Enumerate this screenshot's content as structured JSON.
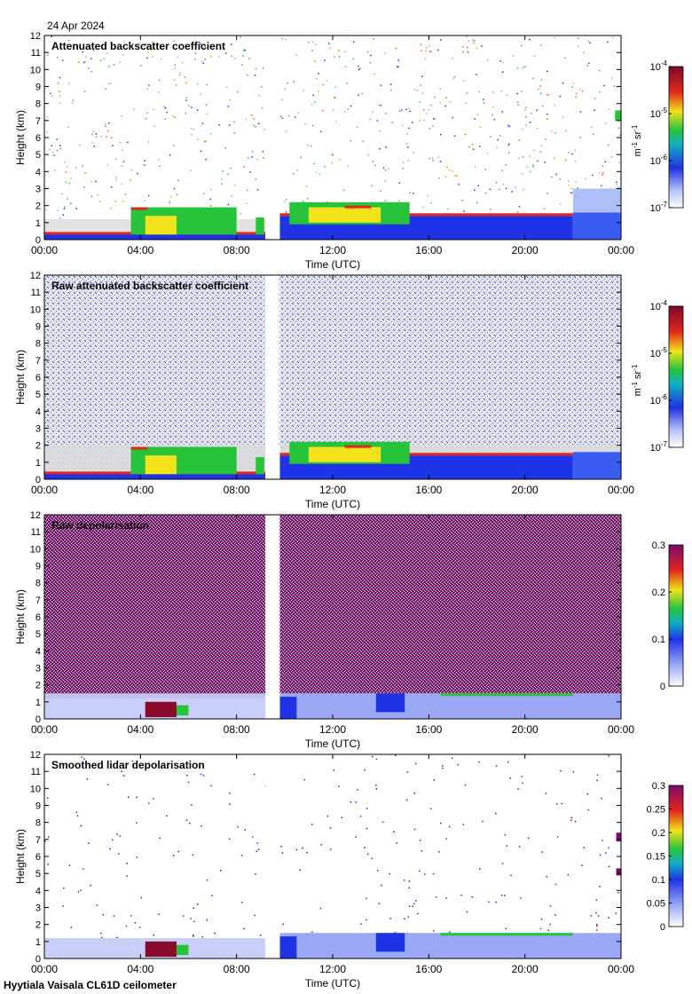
{
  "date": "24 Apr 2024",
  "footer": "Hyytiala Vaisala CL61D ceilometer",
  "colors": {
    "clear_air": "#d9d9d9",
    "violet": "#7a0a6e",
    "blue": "#1f33e6",
    "light_blue": "#8fa4f5",
    "green": "#27c43b",
    "yellow": "#f2e31a",
    "red": "#e3261b",
    "dark_red": "#8a0a2a"
  },
  "chart_data": [
    {
      "type": "heatmap",
      "title": "Attenuated backscatter coefficient",
      "xlabel": "Time (UTC)",
      "ylabel": "Height (km)",
      "x_ticks": [
        "00:00",
        "04:00",
        "08:00",
        "12:00",
        "16:00",
        "20:00",
        "00:00"
      ],
      "xlim_hours": [
        0,
        24
      ],
      "y_ticks": [
        0,
        1,
        2,
        3,
        4,
        5,
        6,
        7,
        8,
        9,
        10,
        11,
        12
      ],
      "ylim_km": [
        0,
        12
      ],
      "data_gap_hours": [
        9.2,
        9.8
      ],
      "colorbar": {
        "scale": "log",
        "range": [
          1e-07,
          0.0001
        ],
        "tick_labels": [
          {
            "base": "10",
            "exp": "-4"
          },
          {
            "base": "10",
            "exp": "-5"
          },
          {
            "base": "10",
            "exp": "-6"
          },
          {
            "base": "10",
            "exp": "-7"
          }
        ],
        "unit": {
          "parts": [
            {
              "base": "m",
              "exp": "-1"
            },
            {
              "base": " sr",
              "exp": "-1"
            }
          ]
        },
        "colors": [
          "#ffffff",
          "#8fa4f5",
          "#1f33e6",
          "#27c43b",
          "#f2e31a",
          "#e3261b",
          "#7a0a2a"
        ]
      }
    },
    {
      "type": "heatmap",
      "title": "Raw attenuated backscatter coefficient",
      "xlabel": "Time (UTC)",
      "ylabel": "Height (km)",
      "x_ticks": [
        "00:00",
        "04:00",
        "08:00",
        "12:00",
        "16:00",
        "20:00",
        "00:00"
      ],
      "xlim_hours": [
        0,
        24
      ],
      "y_ticks": [
        0,
        1,
        2,
        3,
        4,
        5,
        6,
        7,
        8,
        9,
        10,
        11,
        12
      ],
      "ylim_km": [
        0,
        12
      ],
      "data_gap_hours": [
        9.2,
        9.8
      ],
      "colorbar": {
        "scale": "log",
        "range": [
          1e-07,
          0.0001
        ],
        "tick_labels": [
          {
            "base": "10",
            "exp": "-4"
          },
          {
            "base": "10",
            "exp": "-5"
          },
          {
            "base": "10",
            "exp": "-6"
          },
          {
            "base": "10",
            "exp": "-7"
          }
        ],
        "unit": {
          "parts": [
            {
              "base": "m",
              "exp": "-1"
            },
            {
              "base": " sr",
              "exp": "-1"
            }
          ]
        },
        "colors": [
          "#ffffff",
          "#8fa4f5",
          "#1f33e6",
          "#27c43b",
          "#f2e31a",
          "#e3261b",
          "#7a0a2a"
        ]
      }
    },
    {
      "type": "heatmap",
      "title": "Raw depolarisation",
      "xlabel": "Time (UTC)",
      "ylabel": "Height (km)",
      "x_ticks": [
        "00:00",
        "04:00",
        "08:00",
        "12:00",
        "16:00",
        "20:00",
        "00:00"
      ],
      "xlim_hours": [
        0,
        24
      ],
      "y_ticks": [
        0,
        1,
        2,
        3,
        4,
        5,
        6,
        7,
        8,
        9,
        10,
        11,
        12
      ],
      "ylim_km": [
        0,
        12
      ],
      "data_gap_hours": [
        9.2,
        9.8
      ],
      "colorbar": {
        "scale": "linear",
        "range": [
          0,
          0.3
        ],
        "tick_labels": [
          "0.3",
          "0.2",
          "0.1",
          "0"
        ],
        "colors": [
          "#ffffff",
          "#8fa4f5",
          "#1f33e6",
          "#27c43b",
          "#f2e31a",
          "#e3261b",
          "#7a0a6e"
        ]
      }
    },
    {
      "type": "heatmap",
      "title": "Smoothed lidar depolarisation",
      "xlabel": "Time (UTC)",
      "ylabel": "Height (km)",
      "x_ticks": [
        "00:00",
        "04:00",
        "08:00",
        "12:00",
        "16:00",
        "20:00",
        "00:00"
      ],
      "xlim_hours": [
        0,
        24
      ],
      "y_ticks": [
        0,
        1,
        2,
        3,
        4,
        5,
        6,
        7,
        8,
        9,
        10,
        11,
        12
      ],
      "ylim_km": [
        0,
        12
      ],
      "data_gap_hours": [
        9.2,
        9.8
      ],
      "colorbar": {
        "scale": "linear",
        "range": [
          0,
          0.3
        ],
        "tick_labels": [
          "0.3",
          "0.25",
          "0.2",
          "0.15",
          "0.1",
          "0.05",
          "0"
        ],
        "colors": [
          "#ffffff",
          "#8fa4f5",
          "#1f33e6",
          "#27c43b",
          "#f2e31a",
          "#e3261b",
          "#7a0a6e"
        ]
      }
    }
  ]
}
